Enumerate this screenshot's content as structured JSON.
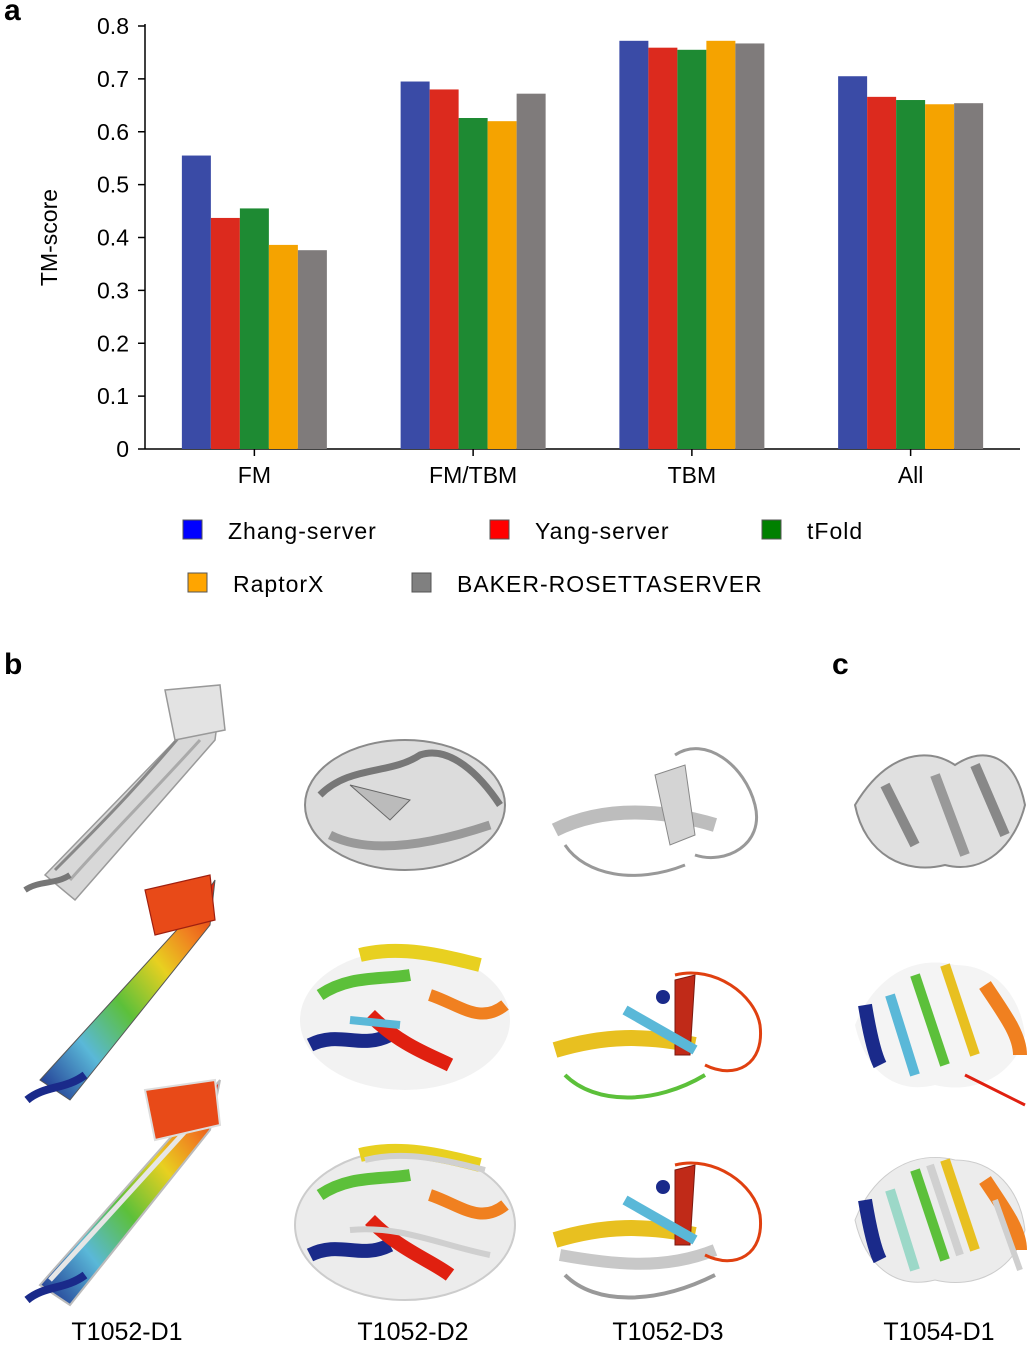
{
  "panels": {
    "a": "a",
    "b": "b",
    "c": "c"
  },
  "chart_data": {
    "type": "bar",
    "categories": [
      "FM",
      "FM/TBM",
      "TBM",
      "All"
    ],
    "ylabel": "TM-score",
    "ylim": [
      0,
      0.8
    ],
    "yticks": [
      0,
      0.1,
      0.2,
      0.3,
      0.4,
      0.5,
      0.6,
      0.7,
      0.8
    ],
    "ytick_labels": [
      "0",
      "0.1",
      "0.2",
      "0.3",
      "0.4",
      "0.5",
      "0.6",
      "0.7",
      "0.8"
    ],
    "series": [
      {
        "name": "Zhang-server",
        "color": "#3a4ba6",
        "legend_color": "#0000ff",
        "values": [
          0.555,
          0.695,
          0.772,
          0.705
        ]
      },
      {
        "name": "Yang-server",
        "color": "#dc2a1e",
        "legend_color": "#ff0000",
        "values": [
          0.437,
          0.68,
          0.759,
          0.666
        ]
      },
      {
        "name": "tFold",
        "color": "#1e8a33",
        "legend_color": "#008000",
        "values": [
          0.455,
          0.626,
          0.755,
          0.66
        ]
      },
      {
        "name": "RaptorX",
        "color": "#f5a300",
        "legend_color": "#ffa500",
        "values": [
          0.386,
          0.62,
          0.772,
          0.652
        ]
      },
      {
        "name": "BAKER-ROSETTASERVER",
        "color": "#7f7b7b",
        "legend_color": "#808080",
        "values": [
          0.376,
          0.672,
          0.767,
          0.654
        ]
      }
    ]
  },
  "structures": {
    "captions": [
      "T1052-D1",
      "T1052-D2",
      "T1052-D3",
      "T1054-D1"
    ]
  }
}
